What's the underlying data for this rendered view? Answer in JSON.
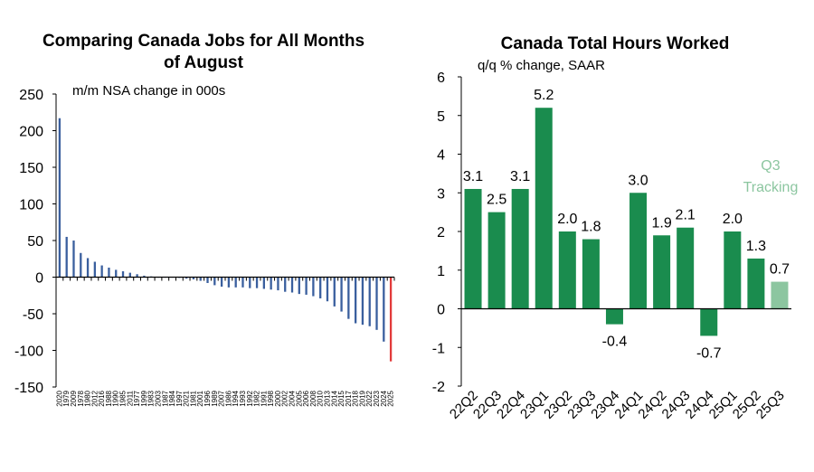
{
  "chart_data": [
    {
      "type": "bar",
      "title": "Comparing Canada Jobs for All Months of August",
      "subtitle": "m/m NSA change in 000s",
      "ylim": [
        -150,
        250
      ],
      "yticks": [
        "250",
        "200",
        "150",
        "100",
        "50",
        "0",
        "-50",
        "-100",
        "-150"
      ],
      "grid": false,
      "colors": {
        "bars": "#3a5f9e",
        "highlight": "#e23a3a"
      },
      "categories": [
        "2020",
        "1979",
        "2009",
        "1978",
        "1980",
        "2012",
        "2016",
        "1988",
        "1990",
        "1985",
        "2011",
        "1977",
        "1999",
        "1983",
        "2003",
        "1987",
        "1984",
        "1997",
        "2021",
        "1981",
        "2001",
        "1996",
        "1989",
        "2007",
        "1986",
        "1994",
        "1993",
        "1992",
        "1982",
        "1991",
        "1998",
        "2000",
        "2002",
        "2004",
        "2005",
        "2006",
        "2008",
        "2010",
        "2013",
        "2014",
        "2015",
        "2017",
        "2018",
        "2019",
        "2022",
        "2023",
        "2024",
        "2025"
      ],
      "values": [
        217,
        55,
        50,
        33,
        26,
        21,
        16,
        13,
        10,
        8,
        6,
        4,
        2,
        1,
        0,
        0,
        0,
        -1,
        -2,
        -3,
        -5,
        -8,
        -11,
        -13,
        -14,
        -14,
        -14,
        -15,
        -15,
        -16,
        -17,
        -18,
        -20,
        -21,
        -23,
        -24,
        -26,
        -29,
        -33,
        -40,
        -47,
        -57,
        -63,
        -65,
        -67,
        -72,
        -88,
        -115
      ],
      "highlight_index": 47,
      "highlight_color": "#e23a3a"
    },
    {
      "type": "bar",
      "title": "Canada Total Hours Worked",
      "subtitle": "q/q % change, SAAR",
      "ylim": [
        -2,
        6
      ],
      "yticks": [
        "6",
        "5",
        "4",
        "3",
        "2",
        "1",
        "0",
        "-1",
        "-2"
      ],
      "grid": false,
      "colors": {
        "bars": "#1a8c4e",
        "tracking": "#8cc6a0",
        "annotation": "#8cc6a0"
      },
      "categories": [
        "22Q2",
        "22Q3",
        "22Q4",
        "23Q1",
        "23Q2",
        "23Q3",
        "23Q4",
        "24Q1",
        "24Q2",
        "24Q3",
        "24Q4",
        "25Q1",
        "25Q2",
        "25Q3"
      ],
      "values": [
        3.1,
        2.5,
        3.1,
        5.2,
        2.0,
        1.8,
        -0.4,
        3.0,
        1.9,
        2.1,
        -0.7,
        2.0,
        1.3,
        0.7
      ],
      "labels": [
        "3.1",
        "2.5",
        "3.1",
        "5.2",
        "2.0",
        "1.8",
        "-0.4",
        "3.0",
        "1.9",
        "2.1",
        "-0.7",
        "2.0",
        "1.3",
        "0.7"
      ],
      "tracking_index": 13,
      "annotation": [
        "Q3",
        "Tracking"
      ]
    }
  ]
}
